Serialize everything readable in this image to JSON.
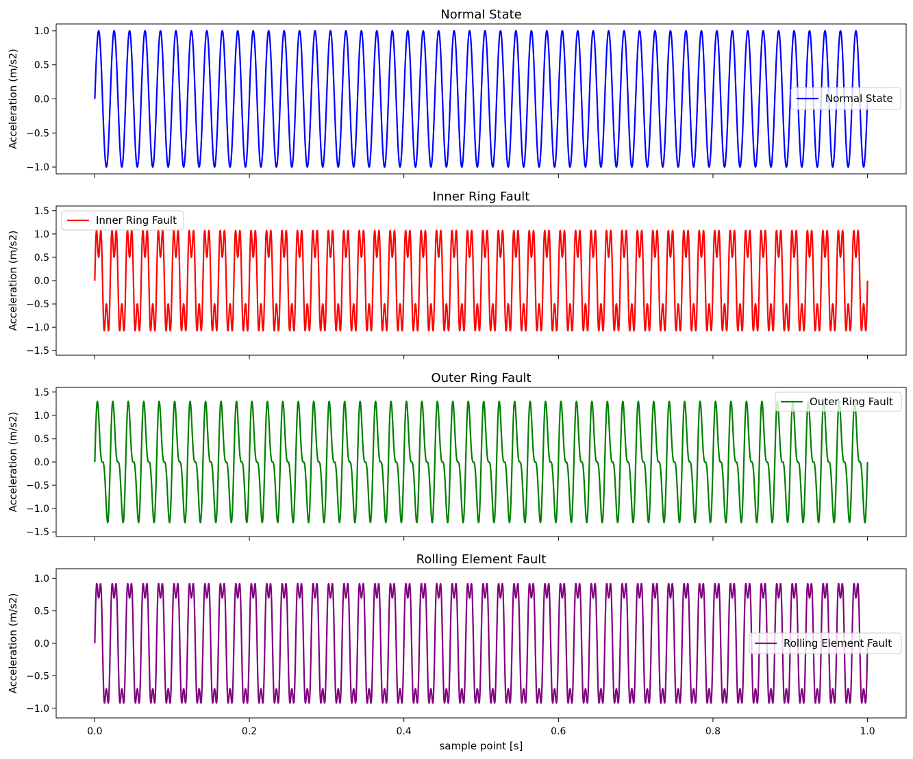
{
  "chart_data": [
    {
      "type": "line",
      "title": "Normal State",
      "ylabel": "Acceleration (m/s2)",
      "xlabel": "",
      "xlim": [
        -0.05,
        1.05
      ],
      "ylim": [
        -1.1,
        1.1
      ],
      "yticks": [
        "1.0",
        "0.5",
        "0.0",
        "-0.5",
        "-1.0"
      ],
      "ytick_values": [
        1.0,
        0.5,
        0.0,
        -0.5,
        -1.0
      ],
      "xtick_values": [
        0.0,
        0.2,
        0.4,
        0.6,
        0.8,
        1.0
      ],
      "xtick_labels": [
        "",
        "",
        "",
        "",
        "",
        ""
      ],
      "legend": "center-right",
      "series": [
        {
          "name": "Normal State",
          "color": "#0000ff",
          "formula": "sin(2*pi*50*t)",
          "x_range": [
            0,
            1
          ],
          "y_range": [
            -1.0,
            1.0
          ],
          "components": [
            {
              "amplitude": 1.0,
              "frequency_hz": 50
            }
          ]
        }
      ]
    },
    {
      "type": "line",
      "title": "Inner Ring Fault",
      "ylabel": "Acceleration (m/s2)",
      "xlabel": "",
      "xlim": [
        -0.05,
        1.05
      ],
      "ylim": [
        -1.6,
        1.6
      ],
      "yticks": [
        "1.5",
        "1.0",
        "0.5",
        "0.0",
        "-0.5",
        "-1.0",
        "-1.5"
      ],
      "ytick_values": [
        1.5,
        1.0,
        0.5,
        0.0,
        -0.5,
        -1.0,
        -1.5
      ],
      "xtick_values": [
        0.0,
        0.2,
        0.4,
        0.6,
        0.8,
        1.0
      ],
      "xtick_labels": [
        "",
        "",
        "",
        "",
        "",
        ""
      ],
      "legend": "top-left",
      "series": [
        {
          "name": "Inner Ring Fault",
          "color": "#ff0000",
          "formula": "sin(2*pi*50*t) + 0.5*sin(2*pi*150*t)",
          "x_range": [
            0,
            1
          ],
          "y_range": [
            -1.5,
            1.5
          ],
          "components": [
            {
              "amplitude": 1.0,
              "frequency_hz": 50
            },
            {
              "amplitude": 0.5,
              "frequency_hz": 150
            }
          ]
        }
      ]
    },
    {
      "type": "line",
      "title": "Outer Ring Fault",
      "ylabel": "Acceleration (m/s2)",
      "xlabel": "",
      "xlim": [
        -0.05,
        1.05
      ],
      "ylim": [
        -1.6,
        1.6
      ],
      "yticks": [
        "1.5",
        "1.0",
        "0.5",
        "0.0",
        "-0.5",
        "-1.0",
        "-1.5"
      ],
      "ytick_values": [
        1.5,
        1.0,
        0.5,
        0.0,
        -0.5,
        -1.0,
        -1.5
      ],
      "xtick_values": [
        0.0,
        0.2,
        0.4,
        0.6,
        0.8,
        1.0
      ],
      "xtick_labels": [
        "",
        "",
        "",
        "",
        "",
        ""
      ],
      "legend": "top-right",
      "series": [
        {
          "name": "Outer Ring Fault",
          "color": "#008000",
          "formula": "sin(2*pi*50*t) + 0.5*sin(2*pi*100*t)",
          "x_range": [
            0,
            1
          ],
          "y_range": [
            -1.5,
            1.5
          ],
          "components": [
            {
              "amplitude": 1.0,
              "frequency_hz": 50
            },
            {
              "amplitude": 0.5,
              "frequency_hz": 100
            }
          ]
        }
      ]
    },
    {
      "type": "line",
      "title": "Rolling Element Fault",
      "ylabel": "Acceleration (m/s2)",
      "xlabel": "sample point [s]",
      "xlim": [
        -0.05,
        1.05
      ],
      "ylim": [
        -1.15,
        1.15
      ],
      "yticks": [
        "1.0",
        "0.5",
        "0.0",
        "-0.5",
        "-1.0"
      ],
      "ytick_values": [
        1.0,
        0.5,
        0.0,
        -0.5,
        -1.0
      ],
      "xtick_values": [
        0.0,
        0.2,
        0.4,
        0.6,
        0.8,
        1.0
      ],
      "xtick_labels": [
        "0.0",
        "0.2",
        "0.4",
        "0.6",
        "0.8",
        "1.0"
      ],
      "legend": "center-right",
      "series": [
        {
          "name": "Rolling Element Fault",
          "color": "#800080",
          "formula": "sin(2*pi*50*t) + 0.3*sin(2*pi*150*t)",
          "x_range": [
            0,
            1
          ],
          "y_range": [
            -1.08,
            1.08
          ],
          "components": [
            {
              "amplitude": 1.0,
              "frequency_hz": 50
            },
            {
              "amplitude": 0.3,
              "frequency_hz": 150
            }
          ]
        }
      ]
    }
  ]
}
